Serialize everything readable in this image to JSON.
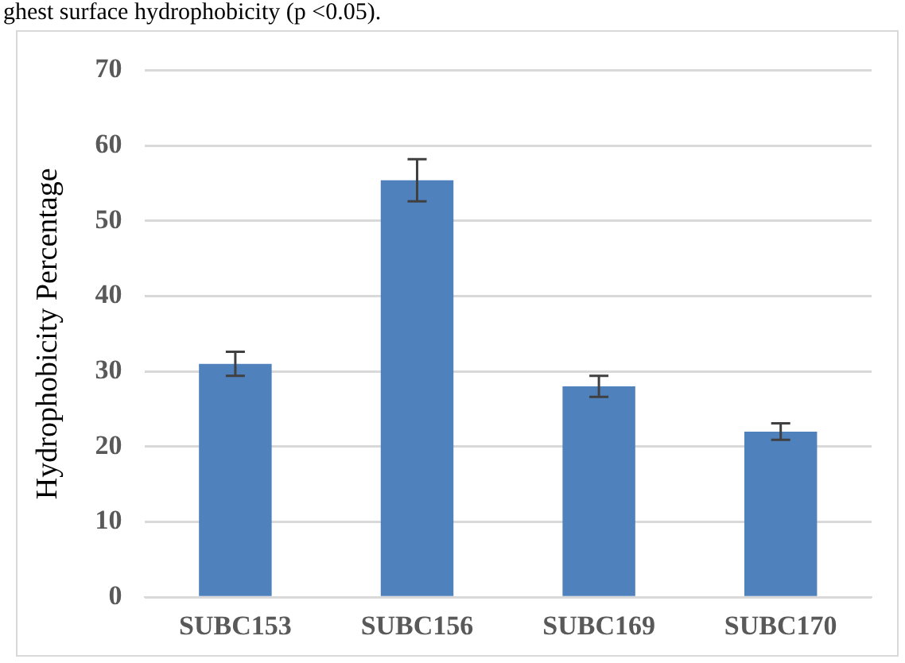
{
  "chart_data": {
    "type": "bar",
    "ylabel": "Hydrophobicity Percentage",
    "annotations": [
      "ghest surface hydrophobicity (p <0.05)."
    ],
    "categories": [
      "SUBC153",
      "SUBC156",
      "SUBC169",
      "SUBC170"
    ],
    "values": [
      31,
      55.4,
      28,
      22
    ],
    "errors": [
      1.6,
      2.8,
      1.4,
      1.1
    ],
    "color": "#4f81bd",
    "ylim": [
      0,
      70
    ],
    "yticks": [
      0,
      10,
      20,
      30,
      40,
      50,
      60,
      70
    ],
    "grid": "y",
    "legend": false
  }
}
